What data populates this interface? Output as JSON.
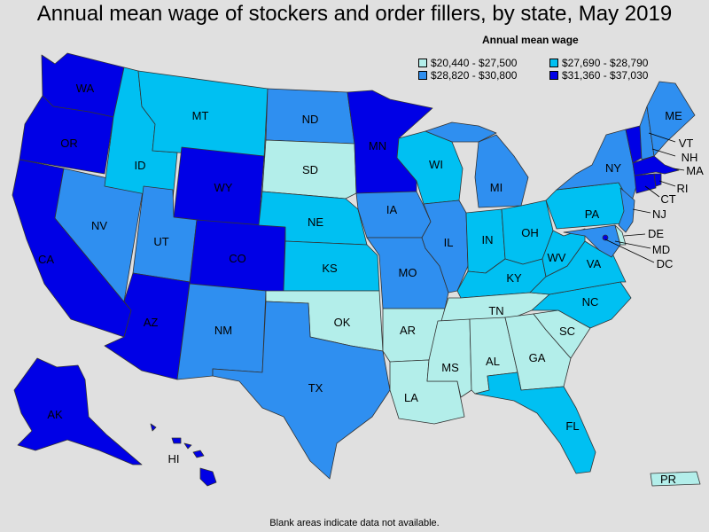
{
  "title": "Annual mean wage of stockers and order fillers, by state, May 2019",
  "legend": {
    "title": "Annual mean wage",
    "items": [
      {
        "label": "$20,440 - $27,500",
        "color": "#b3eeea"
      },
      {
        "label": "$27,690 - $28,790",
        "color": "#00c0f2"
      },
      {
        "label": "$28,820 - $30,800",
        "color": "#2f8ff0"
      },
      {
        "label": "$31,360 - $37,030",
        "color": "#0000e6"
      }
    ]
  },
  "note": "Blank areas indicate data not available.",
  "map_data": {
    "tier_colors": [
      "#b3eeea",
      "#00c0f2",
      "#2f8ff0",
      "#0000e6"
    ],
    "states": {
      "WA": 3,
      "OR": 3,
      "CA": 3,
      "NV": 2,
      "ID": 1,
      "MT": 1,
      "WY": 3,
      "UT": 2,
      "AZ": 3,
      "CO": 3,
      "NM": 2,
      "ND": 2,
      "SD": 0,
      "NE": 1,
      "KS": 1,
      "OK": 0,
      "TX": 2,
      "MN": 3,
      "IA": 2,
      "MO": 2,
      "AR": 0,
      "LA": 0,
      "WI": 1,
      "IL": 2,
      "MI": 2,
      "IN": 1,
      "OH": 1,
      "KY": 1,
      "TN": 0,
      "MS": 0,
      "AL": 0,
      "GA": 0,
      "FL": 1,
      "SC": 0,
      "NC": 1,
      "VA": 1,
      "WV": 1,
      "PA": 1,
      "NY": 2,
      "VT": 3,
      "NH": 2,
      "ME": 2,
      "MA": 3,
      "RI": 3,
      "CT": 3,
      "NJ": 2,
      "DE": 0,
      "MD": 2,
      "DC": 3,
      "AK": 3,
      "HI": 3,
      "PR": 0
    }
  },
  "labels": {
    "WA": "WA",
    "OR": "OR",
    "CA": "CA",
    "NV": "NV",
    "ID": "ID",
    "MT": "MT",
    "WY": "WY",
    "UT": "UT",
    "AZ": "AZ",
    "CO": "CO",
    "NM": "NM",
    "ND": "ND",
    "SD": "SD",
    "NE": "NE",
    "KS": "KS",
    "OK": "OK",
    "TX": "TX",
    "MN": "MN",
    "IA": "IA",
    "MO": "MO",
    "AR": "AR",
    "LA": "LA",
    "WI": "WI",
    "IL": "IL",
    "MI": "MI",
    "IN": "IN",
    "OH": "OH",
    "KY": "KY",
    "TN": "TN",
    "MS": "MS",
    "AL": "AL",
    "GA": "GA",
    "FL": "FL",
    "SC": "SC",
    "NC": "NC",
    "VA": "VA",
    "WV": "WV",
    "PA": "PA",
    "NY": "NY",
    "VT": "VT",
    "NH": "NH",
    "ME": "ME",
    "MA": "MA",
    "RI": "RI",
    "CT": "CT",
    "NJ": "NJ",
    "DE": "DE",
    "MD": "MD",
    "DC": "DC",
    "AK": "AK",
    "HI": "HI",
    "PR": "PR"
  }
}
